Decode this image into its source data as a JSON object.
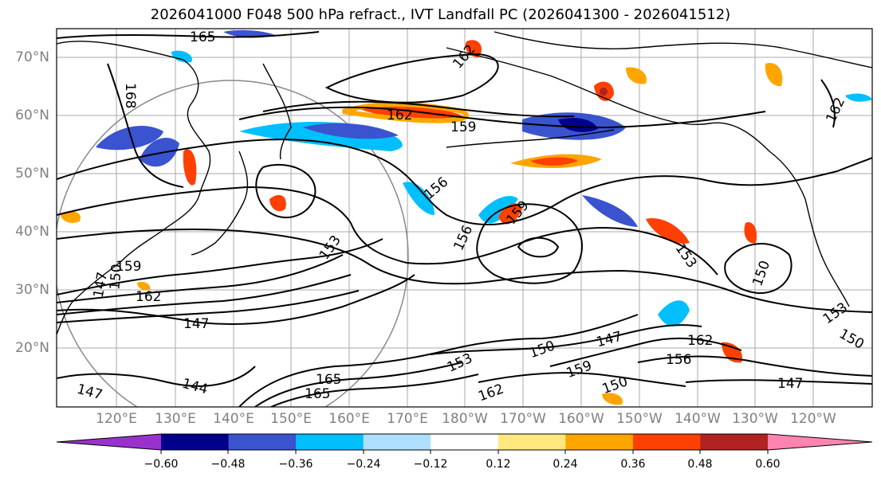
{
  "title": "2026041000 F048 500 hPa refract., IVT Landfall PC (2026041300 - 2026041512)",
  "lat_labels": [
    "70°N",
    "60°N",
    "50°N",
    "40°N",
    "30°N",
    "20°N"
  ],
  "lon_labels": [
    "120°E",
    "130°E",
    "140°E",
    "150°E",
    "160°E",
    "170°E",
    "180°W",
    "170°W",
    "160°W",
    "150°W",
    "140°W",
    "130°W",
    "120°W"
  ],
  "contour_labels": [
    "165",
    "168",
    "162",
    "159",
    "162",
    "156",
    "159",
    "156",
    "153",
    "150",
    "153",
    "150",
    "159",
    "162",
    "147",
    "147",
    "144",
    "165",
    "165",
    "153",
    "150",
    "159",
    "147",
    "162",
    "156",
    "150",
    "147",
    "153",
    "150",
    "147",
    "162",
    "162"
  ],
  "colorbar": {
    "colors": [
      "#9932cc",
      "#00008b",
      "#3a53cf",
      "#00bfff",
      "#b0e0ff",
      "#ffffff",
      "#ffe97f",
      "#ffa500",
      "#ff4000",
      "#b22222",
      "#ff85b0"
    ],
    "tick_labels": [
      "−0.60",
      "−0.48",
      "−0.36",
      "−0.24",
      "−0.12",
      "0.12",
      "0.24",
      "0.36",
      "0.48",
      "0.60"
    ]
  }
}
